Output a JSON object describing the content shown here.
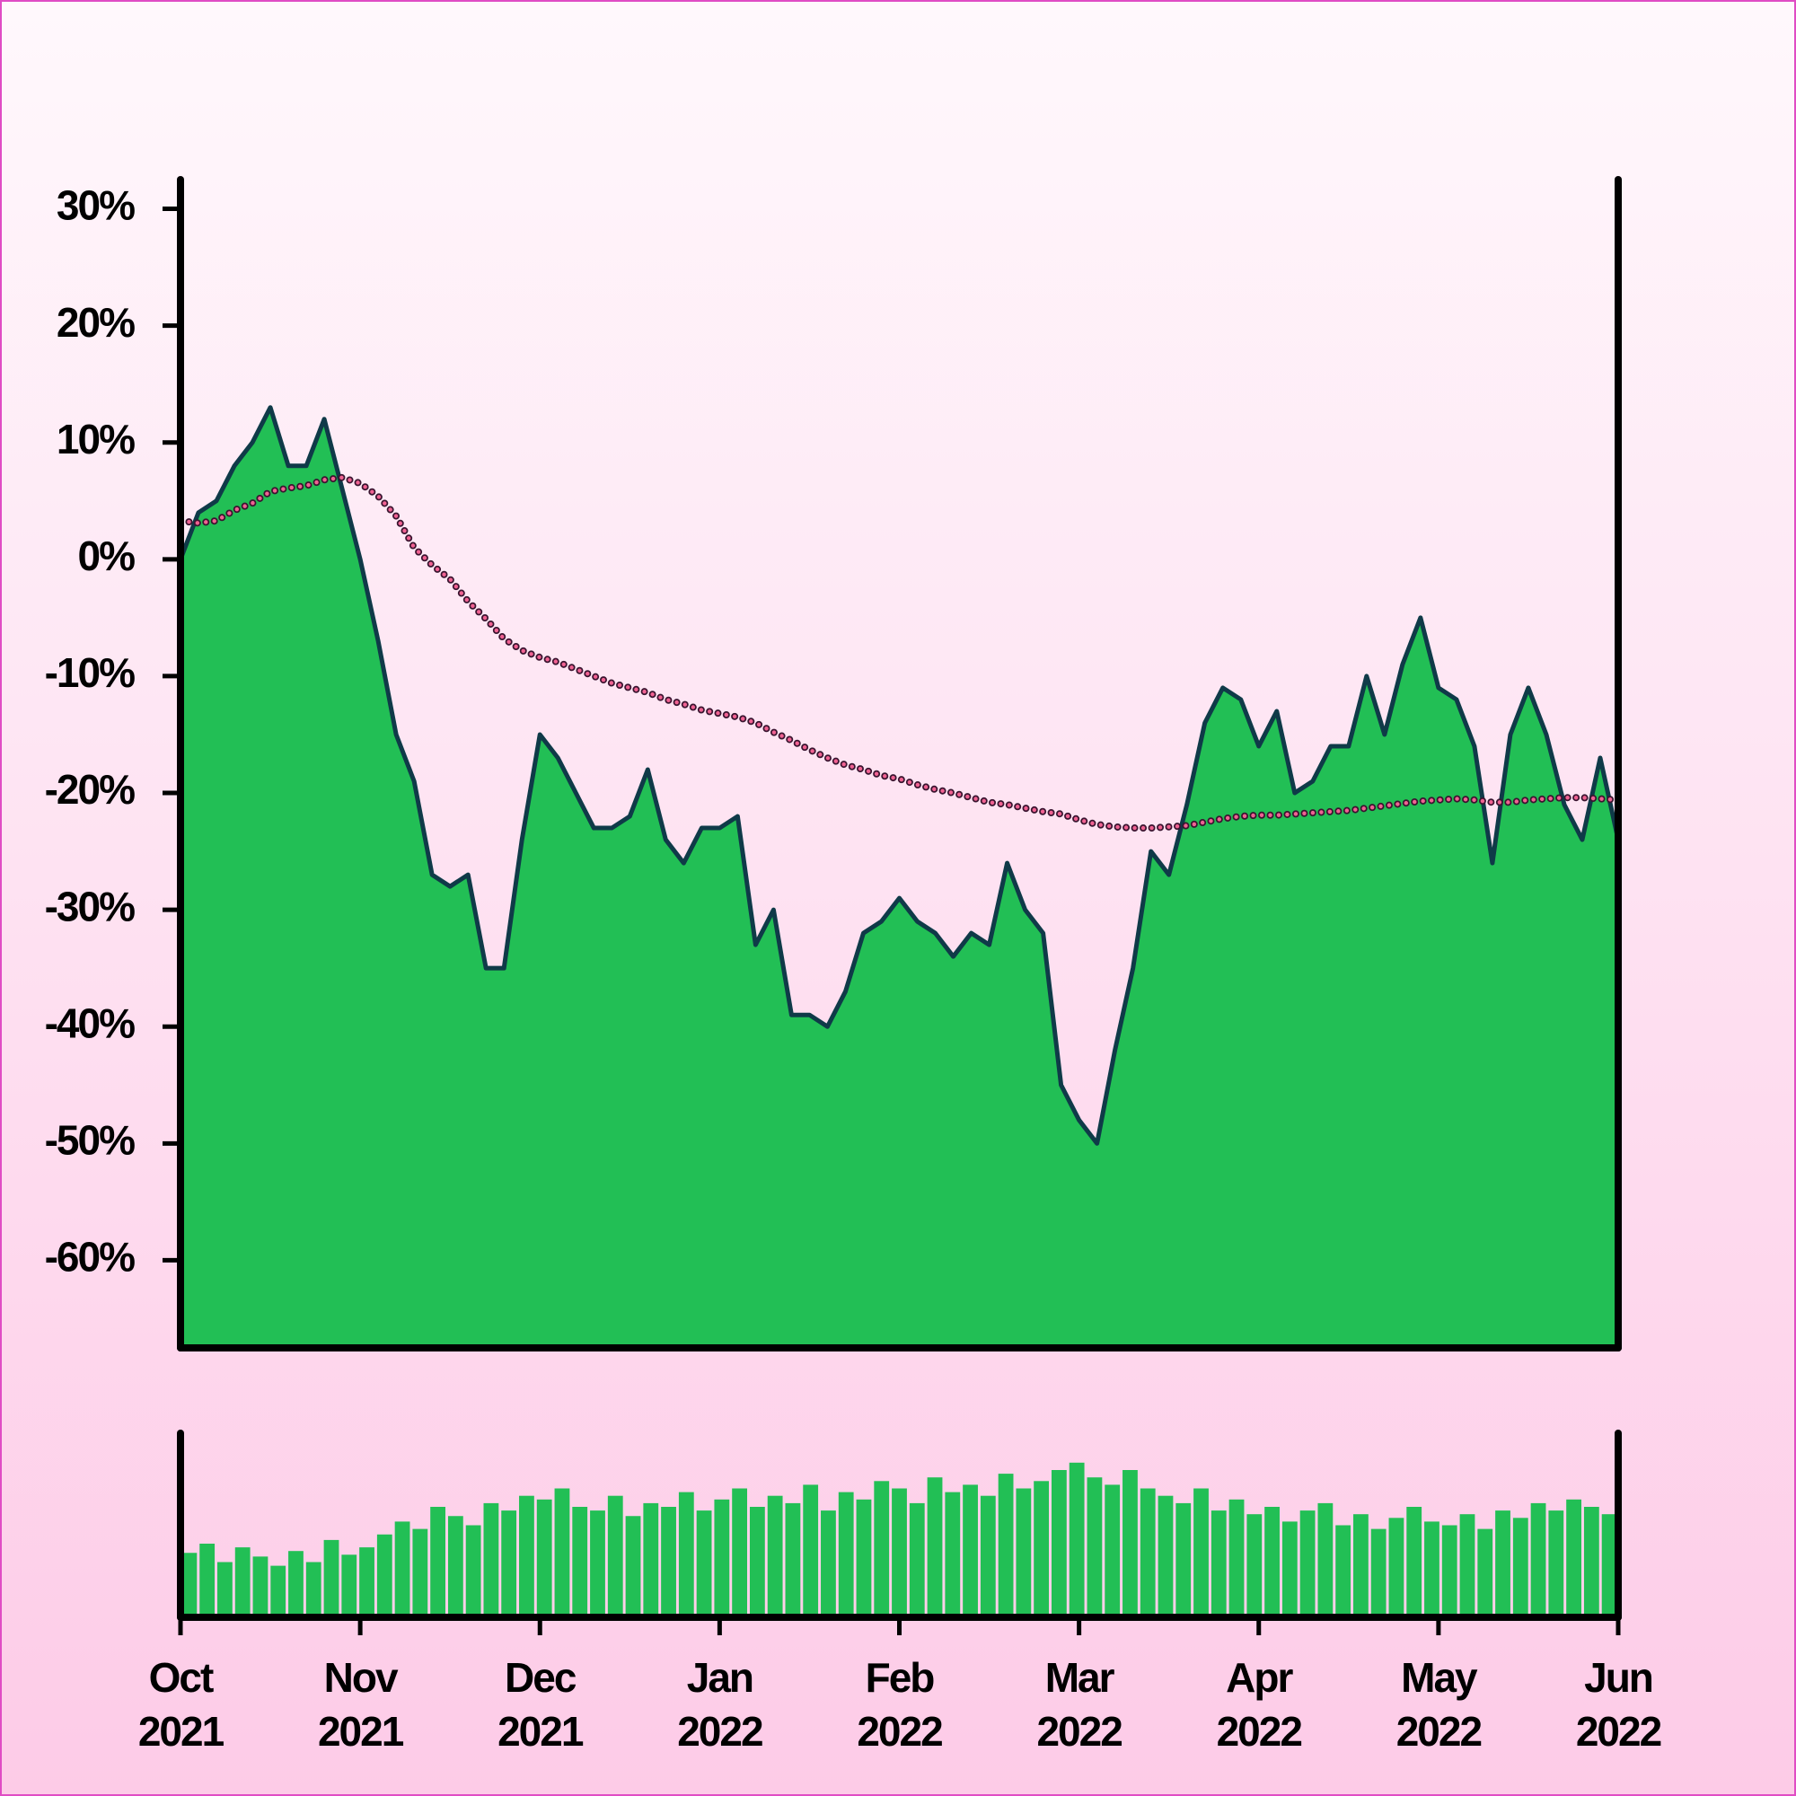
{
  "chart_data": {
    "type": "area",
    "xlim": [
      "2021-10",
      "2022-06"
    ],
    "xticks": [
      {
        "value": "2021-10",
        "label": "Oct\n2021"
      },
      {
        "value": "2021-11",
        "label": "Nov\n2021"
      },
      {
        "value": "2021-12",
        "label": "Dec\n2021"
      },
      {
        "value": "2022-01",
        "label": "Jan\n2022"
      },
      {
        "value": "2022-02",
        "label": "Feb\n2022"
      },
      {
        "value": "2022-03",
        "label": "Mar\n2022"
      },
      {
        "value": "2022-04",
        "label": "Apr\n2022"
      },
      {
        "value": "2022-05",
        "label": "May\n2022"
      },
      {
        "value": "2022-06",
        "label": "Jun\n2022"
      }
    ],
    "ylim": [
      -67.5,
      32.5
    ],
    "yticks": [
      {
        "value": 30,
        "label": "30%"
      },
      {
        "value": 20,
        "label": "20%"
      },
      {
        "value": 10,
        "label": "10%"
      },
      {
        "value": 0,
        "label": "0%"
      },
      {
        "value": -10,
        "label": "-10%"
      },
      {
        "value": -20,
        "label": "-20%"
      },
      {
        "value": -30,
        "label": "-30%"
      },
      {
        "value": -40,
        "label": "-40%"
      },
      {
        "value": -50,
        "label": "-50%"
      },
      {
        "value": -60,
        "label": "-60%"
      }
    ],
    "price": {
      "color": "#22bf55",
      "line_color": "#0f3a48",
      "values": [
        0,
        4,
        5,
        8,
        10,
        13,
        8,
        8,
        12,
        6,
        0,
        -7,
        -15,
        -19,
        -27,
        -28,
        -27,
        -35,
        -35,
        -24,
        -15,
        -17,
        -20,
        -23,
        -23,
        -22,
        -18,
        -24,
        -26,
        -23,
        -23,
        -22,
        -33,
        -30,
        -39,
        -39,
        -40,
        -37,
        -32,
        -31,
        -29,
        -31,
        -32,
        -34,
        -32,
        -33,
        -26,
        -30,
        -32,
        -45,
        -48,
        -50,
        -42,
        -35,
        -25,
        -27,
        -21,
        -14,
        -11,
        -12,
        -16,
        -13,
        -20,
        -19,
        -16,
        -16,
        -10,
        -15,
        -9,
        -5,
        -11,
        -12,
        -16,
        -26,
        -15,
        -11,
        -15,
        -21,
        -24,
        -17,
        -24
      ]
    },
    "moving_average": {
      "color": "#f06292",
      "edge_color": "#3a1530",
      "values": [
        3.3,
        3.1,
        3.3,
        4.2,
        4.8,
        5.8,
        6.1,
        6.3,
        6.8,
        7.0,
        6.5,
        5.4,
        3.7,
        1.0,
        -0.5,
        -1.7,
        -3.6,
        -5.1,
        -6.8,
        -7.8,
        -8.4,
        -8.8,
        -9.4,
        -10,
        -10.6,
        -11,
        -11.4,
        -12,
        -12.4,
        -12.9,
        -13.2,
        -13.5,
        -14,
        -14.8,
        -15.5,
        -16.3,
        -17,
        -17.6,
        -18,
        -18.5,
        -18.8,
        -19.3,
        -19.7,
        -20,
        -20.4,
        -20.8,
        -21,
        -21.3,
        -21.6,
        -21.8,
        -22.3,
        -22.7,
        -22.9,
        -23,
        -23,
        -22.9,
        -22.8,
        -22.5,
        -22.2,
        -22,
        -21.9,
        -21.9,
        -21.8,
        -21.7,
        -21.6,
        -21.5,
        -21.3,
        -21.1,
        -20.9,
        -20.7,
        -20.6,
        -20.5,
        -20.6,
        -20.8,
        -20.8,
        -20.6,
        -20.5,
        -20.4,
        -20.4,
        -20.5,
        -20.6
      ]
    },
    "volume": {
      "color": "#22bf55",
      "ylim": [
        0,
        100
      ],
      "values": [
        35,
        40,
        30,
        38,
        33,
        28,
        36,
        30,
        42,
        34,
        38,
        45,
        52,
        48,
        60,
        55,
        50,
        62,
        58,
        66,
        64,
        70,
        60,
        58,
        66,
        55,
        62,
        60,
        68,
        58,
        64,
        70,
        60,
        66,
        62,
        72,
        58,
        68,
        64,
        74,
        70,
        62,
        76,
        68,
        72,
        66,
        78,
        70,
        74,
        80,
        84,
        76,
        72,
        80,
        70,
        66,
        62,
        70,
        58,
        64,
        56,
        60,
        52,
        58,
        62,
        50,
        56,
        48,
        54,
        60,
        52,
        50,
        56,
        48,
        58,
        54,
        62,
        58,
        64,
        60,
        56
      ]
    }
  }
}
